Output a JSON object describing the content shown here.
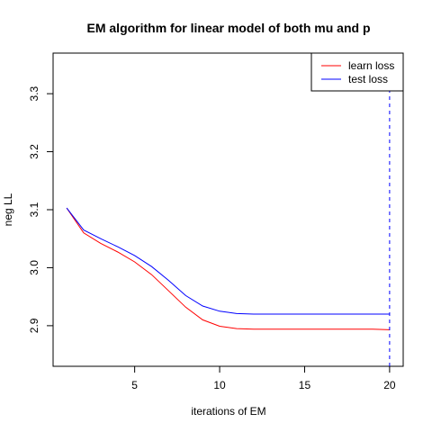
{
  "chart_data": {
    "type": "line",
    "title": "EM algorithm for linear model of both mu and p",
    "xlabel": "iterations of EM",
    "ylabel": "neg LL",
    "xlim": [
      0.2,
      20.8
    ],
    "ylim": [
      2.83,
      3.37
    ],
    "x_ticks": [
      5,
      10,
      15,
      20
    ],
    "y_ticks": [
      2.9,
      3.0,
      3.1,
      3.2,
      3.3
    ],
    "x": [
      1,
      2,
      3,
      4,
      5,
      6,
      7,
      8,
      9,
      10,
      11,
      12,
      13,
      14,
      15,
      16,
      17,
      18,
      19,
      20
    ],
    "series": [
      {
        "name": "learn loss",
        "color": "#ff0000",
        "values": [
          3.103,
          3.06,
          3.042,
          3.027,
          3.01,
          2.988,
          2.96,
          2.932,
          2.91,
          2.899,
          2.895,
          2.894,
          2.894,
          2.894,
          2.894,
          2.894,
          2.894,
          2.894,
          2.894,
          2.893
        ]
      },
      {
        "name": "test loss",
        "color": "#0000ff",
        "values": [
          3.103,
          3.065,
          3.05,
          3.036,
          3.021,
          3.002,
          2.978,
          2.952,
          2.934,
          2.925,
          2.921,
          2.92,
          2.92,
          2.92,
          2.92,
          2.92,
          2.92,
          2.92,
          2.92,
          2.92
        ]
      }
    ],
    "vline": {
      "x": 20,
      "color": "#0000ff",
      "style": "dashed"
    },
    "legend_position": "top-right",
    "grid": false
  }
}
